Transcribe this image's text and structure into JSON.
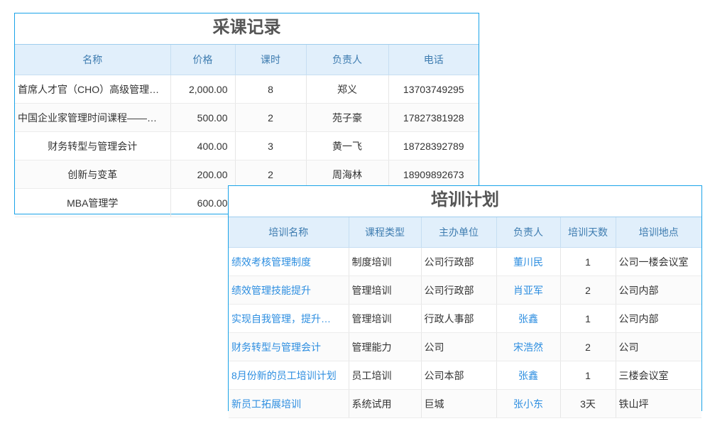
{
  "purchase": {
    "title": "采课记录",
    "columns": [
      "名称",
      "价格",
      "课时",
      "负责人",
      "电话"
    ],
    "rows": [
      [
        "首席人才官（CHO）高级管理…",
        "2,000.00",
        "8",
        "郑义",
        "13703749295"
      ],
      [
        "中国企业家管理时间课程——…",
        "500.00",
        "2",
        "苑子豪",
        "17827381928"
      ],
      [
        "财务转型与管理会计",
        "400.00",
        "3",
        "黄一飞",
        "18728392789"
      ],
      [
        "创新与变革",
        "200.00",
        "2",
        "周海林",
        "18909892673"
      ],
      [
        "MBA管理学",
        "600.00",
        "",
        "",
        ""
      ]
    ]
  },
  "training": {
    "title": "培训计划",
    "columns": [
      "培训名称",
      "课程类型",
      "主办单位",
      "负责人",
      "培训天数",
      "培训地点"
    ],
    "rows": [
      [
        "绩效考核管理制度",
        "制度培训",
        "公司行政部",
        "董川民",
        "1",
        "公司一楼会议室"
      ],
      [
        "绩效管理技能提升",
        "管理培训",
        "公司行政部",
        "肖亚军",
        "2",
        "公司内部"
      ],
      [
        "实现自我管理，提升…",
        "管理培训",
        "行政人事部",
        "张鑫",
        "1",
        "公司内部"
      ],
      [
        "财务转型与管理会计",
        "管理能力",
        "公司",
        "宋浩然",
        "2",
        "公司"
      ],
      [
        "8月份新的员工培训计划",
        "员工培训",
        "公司本部",
        "张鑫",
        "1",
        "三楼会议室"
      ],
      [
        "新员工拓展培训",
        "系统试用",
        "巨城",
        "张小东",
        "3天",
        "铁山坪"
      ]
    ]
  },
  "colors": {
    "border": "#1aa3e8",
    "header_bg": "#e1effb",
    "header_text": "#3e7cb0",
    "link": "#2d8ee0"
  }
}
